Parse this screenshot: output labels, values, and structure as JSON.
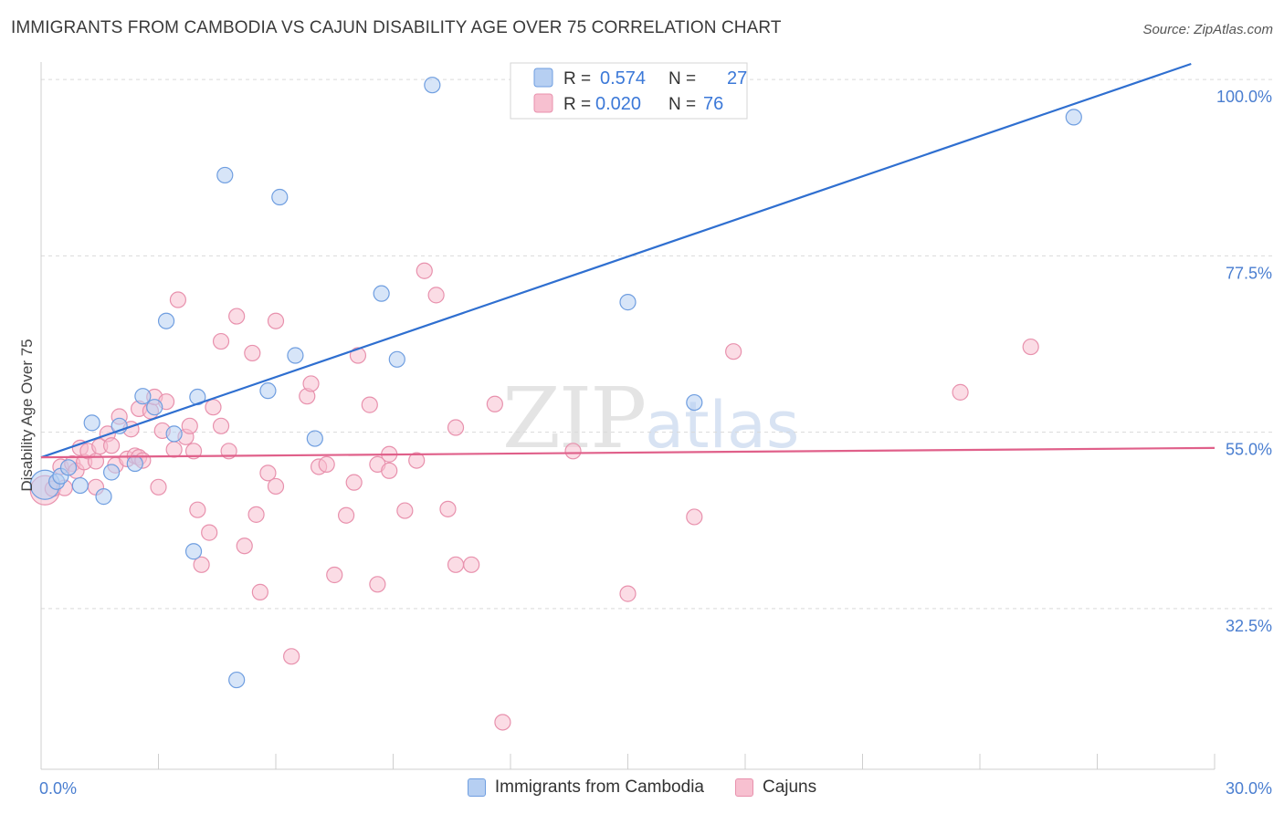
{
  "title": "IMMIGRANTS FROM CAMBODIA VS CAJUN DISABILITY AGE OVER 75 CORRELATION CHART",
  "source": "Source: ZipAtlas.com",
  "watermark": {
    "zip": "ZIP",
    "atlas": "atlas"
  },
  "colors": {
    "blue_fill": "#b6cff2",
    "blue_stroke": "#6f9ee0",
    "blue_line": "#2f6fd0",
    "pink_fill": "#f7c0d0",
    "pink_stroke": "#e891ad",
    "pink_line": "#e0608a",
    "grid": "#d9d9d9",
    "tick_label": "#4a7ed0"
  },
  "legend": {
    "rows": [
      {
        "r_label": "R =",
        "r_value": "0.574",
        "n_label": "N =",
        "n_value": "27"
      },
      {
        "r_label": "R =",
        "r_value": "0.020",
        "n_label": "N =",
        "n_value": "76"
      }
    ]
  },
  "bottom_legend": [
    "Immigrants from Cambodia",
    "Cajuns"
  ],
  "chart_data": {
    "type": "scatter",
    "title": "IMMIGRANTS FROM CAMBODIA VS CAJUN DISABILITY AGE OVER 75 CORRELATION CHART",
    "xlabel": "",
    "ylabel": "Disability Age Over 75",
    "xlim": [
      0,
      30
    ],
    "ylim": [
      12,
      102
    ],
    "x_ticks": [
      "0.0%",
      "30.0%"
    ],
    "y_ticks": [
      {
        "value": 32.5,
        "label": "32.5%"
      },
      {
        "value": 55.0,
        "label": "55.0%"
      },
      {
        "value": 77.5,
        "label": "77.5%"
      },
      {
        "value": 100.0,
        "label": "100.0%"
      }
    ],
    "grid": true,
    "legend_position": "top-center",
    "series": [
      {
        "name": "Immigrants from Cambodia",
        "color": "blue",
        "trend": {
          "x": [
            0.0,
            29.4
          ],
          "y": [
            51.8,
            102.0
          ]
        },
        "points": [
          {
            "x": 0.1,
            "y": 48.3,
            "big": true
          },
          {
            "x": 0.4,
            "y": 48.7
          },
          {
            "x": 0.5,
            "y": 49.4
          },
          {
            "x": 0.7,
            "y": 50.5
          },
          {
            "x": 1.0,
            "y": 48.2
          },
          {
            "x": 1.3,
            "y": 56.2
          },
          {
            "x": 1.6,
            "y": 46.8
          },
          {
            "x": 1.8,
            "y": 49.9
          },
          {
            "x": 2.0,
            "y": 55.8
          },
          {
            "x": 2.4,
            "y": 51.0
          },
          {
            "x": 2.6,
            "y": 59.6
          },
          {
            "x": 2.9,
            "y": 58.2
          },
          {
            "x": 3.2,
            "y": 69.2
          },
          {
            "x": 3.4,
            "y": 54.8
          },
          {
            "x": 4.0,
            "y": 59.5
          },
          {
            "x": 3.9,
            "y": 39.8
          },
          {
            "x": 4.7,
            "y": 87.8
          },
          {
            "x": 5.0,
            "y": 23.4
          },
          {
            "x": 5.8,
            "y": 60.3
          },
          {
            "x": 6.1,
            "y": 85.0
          },
          {
            "x": 6.5,
            "y": 64.8
          },
          {
            "x": 7.0,
            "y": 54.2
          },
          {
            "x": 8.7,
            "y": 72.7
          },
          {
            "x": 9.1,
            "y": 64.3
          },
          {
            "x": 10.0,
            "y": 99.3
          },
          {
            "x": 15.0,
            "y": 71.6
          },
          {
            "x": 16.7,
            "y": 58.8
          },
          {
            "x": 26.4,
            "y": 95.2
          }
        ]
      },
      {
        "name": "Cajuns",
        "color": "pink",
        "trend": {
          "x": [
            0.0,
            30.0
          ],
          "y": [
            51.8,
            53.0
          ]
        },
        "points": [
          {
            "x": 0.1,
            "y": 47.6,
            "big": true
          },
          {
            "x": 0.3,
            "y": 47.8
          },
          {
            "x": 0.5,
            "y": 50.6
          },
          {
            "x": 0.6,
            "y": 47.9
          },
          {
            "x": 0.8,
            "y": 51.0
          },
          {
            "x": 0.9,
            "y": 50.1
          },
          {
            "x": 1.0,
            "y": 53.0
          },
          {
            "x": 1.1,
            "y": 51.2
          },
          {
            "x": 1.2,
            "y": 52.6
          },
          {
            "x": 1.4,
            "y": 51.3
          },
          {
            "x": 1.4,
            "y": 48.0
          },
          {
            "x": 1.5,
            "y": 53.2
          },
          {
            "x": 1.7,
            "y": 54.8
          },
          {
            "x": 1.8,
            "y": 53.3
          },
          {
            "x": 1.9,
            "y": 50.8
          },
          {
            "x": 2.0,
            "y": 57.0
          },
          {
            "x": 2.2,
            "y": 51.6
          },
          {
            "x": 2.3,
            "y": 55.4
          },
          {
            "x": 2.4,
            "y": 52.0
          },
          {
            "x": 2.5,
            "y": 51.8
          },
          {
            "x": 2.5,
            "y": 58.0
          },
          {
            "x": 2.6,
            "y": 51.4
          },
          {
            "x": 2.8,
            "y": 57.7
          },
          {
            "x": 2.9,
            "y": 59.5
          },
          {
            "x": 3.0,
            "y": 48.0
          },
          {
            "x": 3.1,
            "y": 55.2
          },
          {
            "x": 3.2,
            "y": 58.9
          },
          {
            "x": 3.4,
            "y": 52.8
          },
          {
            "x": 3.5,
            "y": 71.9
          },
          {
            "x": 3.7,
            "y": 54.4
          },
          {
            "x": 3.8,
            "y": 55.8
          },
          {
            "x": 3.9,
            "y": 52.6
          },
          {
            "x": 4.0,
            "y": 45.1
          },
          {
            "x": 4.1,
            "y": 38.1
          },
          {
            "x": 4.3,
            "y": 42.2
          },
          {
            "x": 4.4,
            "y": 58.2
          },
          {
            "x": 4.6,
            "y": 55.8
          },
          {
            "x": 4.6,
            "y": 66.6
          },
          {
            "x": 4.8,
            "y": 52.6
          },
          {
            "x": 5.0,
            "y": 69.8
          },
          {
            "x": 5.2,
            "y": 40.5
          },
          {
            "x": 5.4,
            "y": 65.1
          },
          {
            "x": 5.5,
            "y": 44.5
          },
          {
            "x": 5.6,
            "y": 34.6
          },
          {
            "x": 5.8,
            "y": 49.8
          },
          {
            "x": 6.0,
            "y": 48.1
          },
          {
            "x": 6.0,
            "y": 69.2
          },
          {
            "x": 6.4,
            "y": 26.4
          },
          {
            "x": 6.8,
            "y": 59.6
          },
          {
            "x": 6.9,
            "y": 61.2
          },
          {
            "x": 7.1,
            "y": 50.6
          },
          {
            "x": 7.3,
            "y": 50.9
          },
          {
            "x": 7.5,
            "y": 36.8
          },
          {
            "x": 7.8,
            "y": 44.4
          },
          {
            "x": 8.0,
            "y": 48.6
          },
          {
            "x": 8.1,
            "y": 64.8
          },
          {
            "x": 8.4,
            "y": 58.5
          },
          {
            "x": 8.6,
            "y": 50.9
          },
          {
            "x": 8.6,
            "y": 35.6
          },
          {
            "x": 8.9,
            "y": 50.1
          },
          {
            "x": 8.9,
            "y": 52.2
          },
          {
            "x": 9.3,
            "y": 45.0
          },
          {
            "x": 9.6,
            "y": 51.4
          },
          {
            "x": 9.8,
            "y": 75.6
          },
          {
            "x": 10.1,
            "y": 72.5
          },
          {
            "x": 10.4,
            "y": 45.2
          },
          {
            "x": 10.6,
            "y": 38.1
          },
          {
            "x": 10.6,
            "y": 55.6
          },
          {
            "x": 11.0,
            "y": 38.1
          },
          {
            "x": 11.6,
            "y": 58.6
          },
          {
            "x": 11.8,
            "y": 18.0
          },
          {
            "x": 13.6,
            "y": 52.6
          },
          {
            "x": 15.0,
            "y": 34.4
          },
          {
            "x": 16.7,
            "y": 44.2
          },
          {
            "x": 17.7,
            "y": 65.3
          },
          {
            "x": 23.5,
            "y": 60.1
          },
          {
            "x": 25.3,
            "y": 65.9
          }
        ]
      }
    ]
  }
}
